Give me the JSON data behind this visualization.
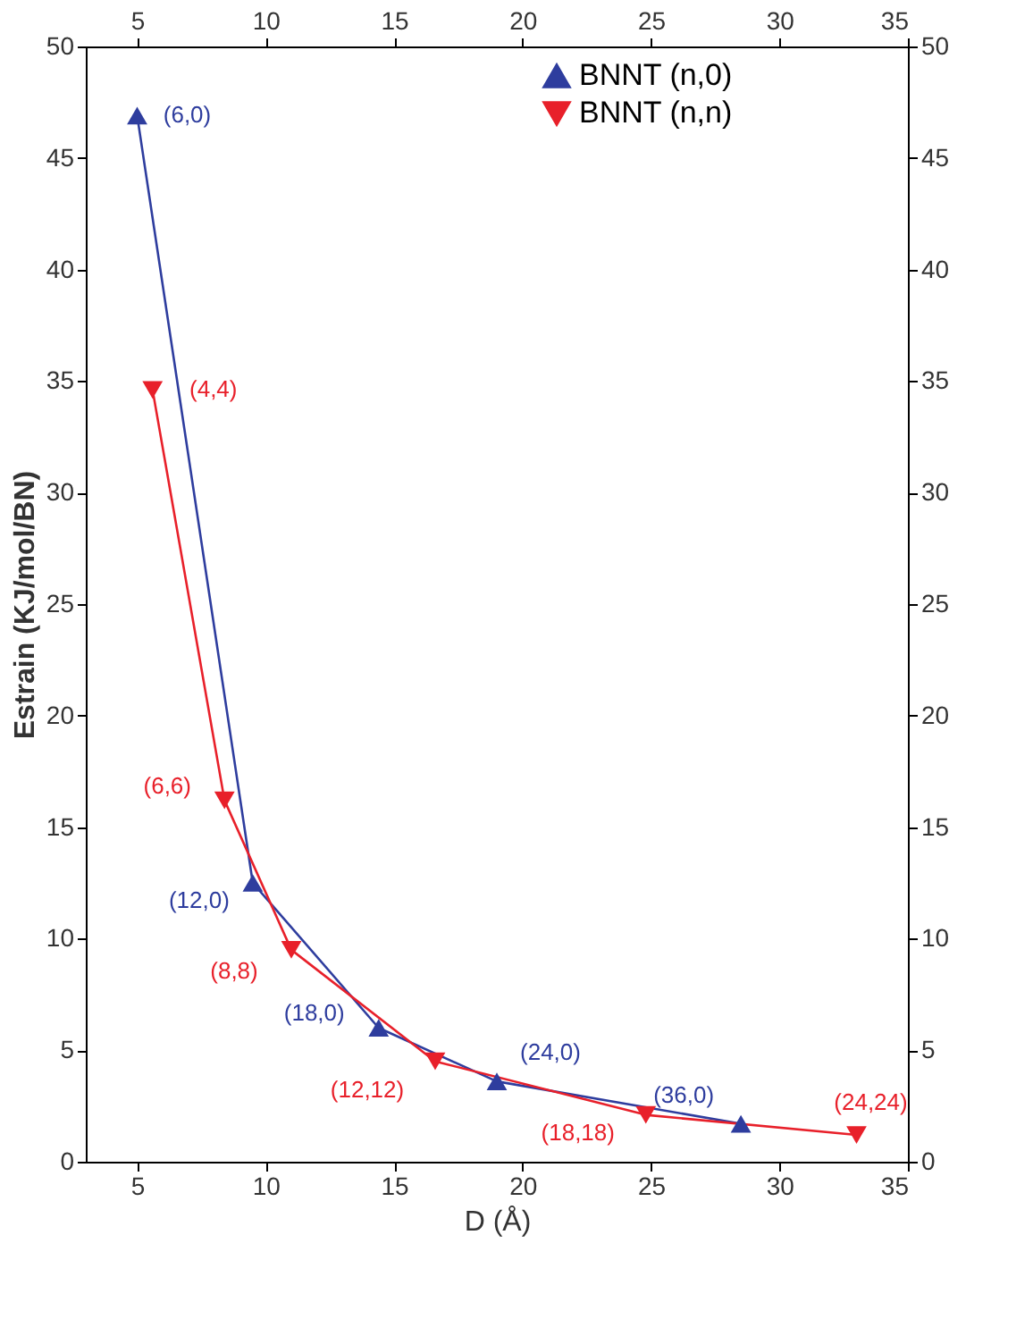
{
  "chart_data": {
    "type": "line",
    "xlabel": "D (Å)",
    "ylabel": "Estrain (KJ/mol/BN)",
    "xlim": [
      3,
      35
    ],
    "xticks": [
      5,
      10,
      15,
      20,
      25,
      30,
      35
    ],
    "ylim": [
      0,
      50
    ],
    "yticks": [
      0,
      5,
      10,
      15,
      20,
      25,
      30,
      35,
      40,
      45,
      50
    ],
    "x2lim": [
      3,
      35
    ],
    "x2ticks": [
      5,
      10,
      15,
      20,
      25,
      30,
      35
    ],
    "y2lim": [
      0,
      50
    ],
    "y2ticks": [
      0,
      5,
      10,
      15,
      20,
      25,
      30,
      35,
      40,
      45,
      50
    ],
    "grid": false,
    "legend": "top right",
    "line_style": "solid",
    "series": [
      {
        "name": "BNNT (n,0)",
        "color": "#2e3d9e",
        "marker": "triangle",
        "x": [
          5.0,
          9.5,
          14.4,
          19.0,
          28.5
        ],
        "values": [
          46.9,
          12.5,
          6.0,
          3.6,
          1.7
        ]
      },
      {
        "name": "BNNT (n,n)",
        "color": "#e8202a",
        "marker": "triangle-down",
        "x": [
          5.6,
          8.4,
          11.0,
          16.6,
          24.8,
          33.0
        ],
        "values": [
          34.6,
          16.2,
          9.5,
          4.5,
          2.1,
          1.2
        ]
      }
    ],
    "annotations": [
      {
        "text": "(6,0)",
        "x": 5.0,
        "y": 46.9
      },
      {
        "text": "(12,0)",
        "x": 9.5,
        "y": 12.5
      },
      {
        "text": "(18,0)",
        "x": 14.4,
        "y": 6.0
      },
      {
        "text": "(24,0)",
        "x": 19.0,
        "y": 3.6
      },
      {
        "text": "(36,0)",
        "x": 28.5,
        "y": 1.7
      },
      {
        "text": "(4,4)",
        "x": 5.6,
        "y": 34.6
      },
      {
        "text": "(6,6)",
        "x": 8.4,
        "y": 16.2
      },
      {
        "text": "(8,8)",
        "x": 11.0,
        "y": 9.5
      },
      {
        "text": "(12,12)",
        "x": 16.6,
        "y": 4.5
      },
      {
        "text": "(18,18)",
        "x": 24.8,
        "y": 2.1
      },
      {
        "text": "(24,24)",
        "x": 33.0,
        "y": 1.2
      }
    ]
  }
}
